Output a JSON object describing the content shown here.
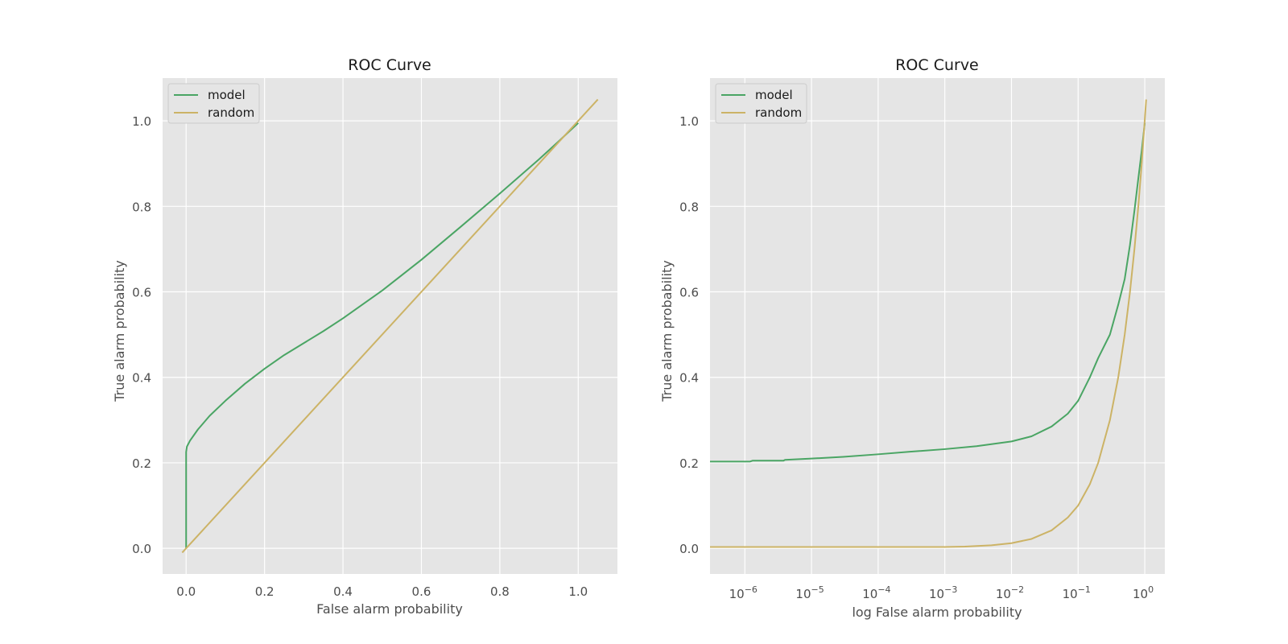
{
  "colors": {
    "background": "#ffffff",
    "plot_background": "#e5e5e5",
    "grid": "#ffffff",
    "text": "#4d4d4d",
    "title_text": "#1a1a1a",
    "legend_background": "#e5e5e5",
    "legend_border": "#cccccc",
    "model": "#4aa564",
    "random": "#ccb366"
  },
  "chart_data": [
    {
      "type": "line",
      "title": "ROC Curve",
      "xlabel": "False alarm probability",
      "ylabel": "True alarm probability",
      "xscale": "linear",
      "xlim": [
        -0.06,
        1.1
      ],
      "ylim": [
        -0.06,
        1.1
      ],
      "x_ticks": [
        0.0,
        0.2,
        0.4,
        0.6,
        0.8,
        1.0
      ],
      "x_tick_labels": [
        "0.0",
        "0.2",
        "0.4",
        "0.6",
        "0.8",
        "1.0"
      ],
      "y_ticks": [
        0.0,
        0.2,
        0.4,
        0.6,
        0.8,
        1.0
      ],
      "y_tick_labels": [
        "0.0",
        "0.2",
        "0.4",
        "0.6",
        "0.8",
        "1.0"
      ],
      "grid": true,
      "legend": "upper-left",
      "series": [
        {
          "name": "model",
          "color": "#4aa564",
          "x": [
            0.0,
            0.0,
            0.0,
            0.002,
            0.01,
            0.03,
            0.06,
            0.1,
            0.15,
            0.2,
            0.25,
            0.3,
            0.35,
            0.4,
            0.5,
            0.6,
            0.7,
            0.8,
            0.9,
            0.95,
            1.0
          ],
          "y": [
            0.0,
            0.2,
            0.225,
            0.238,
            0.252,
            0.278,
            0.31,
            0.345,
            0.385,
            0.42,
            0.452,
            0.48,
            0.508,
            0.538,
            0.603,
            0.675,
            0.752,
            0.83,
            0.91,
            0.952,
            0.995
          ]
        },
        {
          "name": "random",
          "color": "#ccb366",
          "x": [
            -0.01,
            1.05
          ],
          "y": [
            -0.01,
            1.05
          ]
        }
      ]
    },
    {
      "type": "line",
      "title": "ROC Curve",
      "xlabel": "log False alarm probability",
      "ylabel": "True alarm probability",
      "xscale": "log",
      "xlim": [
        3e-07,
        2
      ],
      "ylim": [
        -0.06,
        1.1
      ],
      "x_ticks": [
        1e-06,
        1e-05,
        0.0001,
        0.001,
        0.01,
        0.1,
        1
      ],
      "x_tick_labels": [
        {
          "base": "10",
          "exp": "−6"
        },
        {
          "base": "10",
          "exp": "−5"
        },
        {
          "base": "10",
          "exp": "−4"
        },
        {
          "base": "10",
          "exp": "−3"
        },
        {
          "base": "10",
          "exp": "−2"
        },
        {
          "base": "10",
          "exp": "−1"
        },
        {
          "base": "10",
          "exp": "0"
        }
      ],
      "y_ticks": [
        0.0,
        0.2,
        0.4,
        0.6,
        0.8,
        1.0
      ],
      "y_tick_labels": [
        "0.0",
        "0.2",
        "0.4",
        "0.6",
        "0.8",
        "1.0"
      ],
      "grid": true,
      "legend": "upper-left",
      "series": [
        {
          "name": "model",
          "color": "#4aa564",
          "x": [
            3e-07,
            1.2e-06,
            1.3e-06,
            3.8e-06,
            4e-06,
            1e-05,
            3e-05,
            0.0001,
            0.0003,
            0.001,
            0.003,
            0.01,
            0.02,
            0.04,
            0.07,
            0.1,
            0.15,
            0.2,
            0.3,
            0.4,
            0.5,
            0.6,
            0.7,
            0.8,
            0.9,
            1.0
          ],
          "y": [
            0.203,
            0.203,
            0.205,
            0.205,
            0.207,
            0.21,
            0.214,
            0.22,
            0.226,
            0.232,
            0.239,
            0.25,
            0.262,
            0.285,
            0.315,
            0.345,
            0.4,
            0.445,
            0.5,
            0.57,
            0.63,
            0.71,
            0.79,
            0.865,
            0.93,
            0.995
          ]
        },
        {
          "name": "random",
          "color": "#ccb366",
          "x": [
            3e-07,
            1e-06,
            1e-05,
            0.0001,
            0.001,
            0.002,
            0.005,
            0.01,
            0.02,
            0.04,
            0.07,
            0.1,
            0.15,
            0.2,
            0.3,
            0.4,
            0.5,
            0.6,
            0.7,
            0.8,
            0.9,
            1.05
          ],
          "y": [
            0.003,
            0.003,
            0.003,
            0.003,
            0.003,
            0.004,
            0.007,
            0.012,
            0.022,
            0.042,
            0.072,
            0.1,
            0.15,
            0.2,
            0.3,
            0.4,
            0.5,
            0.6,
            0.7,
            0.8,
            0.9,
            1.05
          ]
        }
      ]
    }
  ]
}
